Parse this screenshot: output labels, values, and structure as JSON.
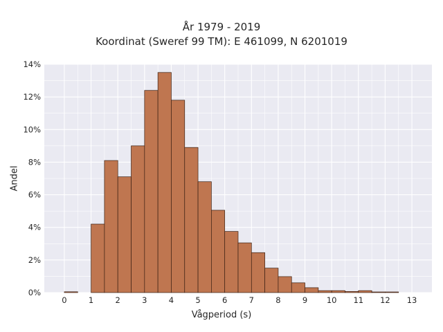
{
  "chart_data": {
    "type": "bar",
    "title": "År 1979 - 2019",
    "subtitle": "Koordinat (Sweref 99 TM): E 461099, N 6201019",
    "xlabel": "Vågperiod (s)",
    "ylabel": "Andel",
    "xlim": [
      -0.75,
      13.75
    ],
    "ylim": [
      0,
      14
    ],
    "xticks": [
      "0",
      "1",
      "2",
      "3",
      "4",
      "5",
      "6",
      "7",
      "8",
      "9",
      "10",
      "11",
      "12",
      "13"
    ],
    "yticks": [
      "0%",
      "2%",
      "4%",
      "6%",
      "8%",
      "10%",
      "12%",
      "14%"
    ],
    "bin_width": 0.5,
    "bins": [
      {
        "start": 0.0,
        "value": 0.05
      },
      {
        "start": 1.0,
        "value": 4.2
      },
      {
        "start": 1.5,
        "value": 8.1
      },
      {
        "start": 2.0,
        "value": 7.1
      },
      {
        "start": 2.5,
        "value": 9.0
      },
      {
        "start": 3.0,
        "value": 12.4
      },
      {
        "start": 3.5,
        "value": 13.5
      },
      {
        "start": 4.0,
        "value": 11.8
      },
      {
        "start": 4.5,
        "value": 8.9
      },
      {
        "start": 5.0,
        "value": 6.8
      },
      {
        "start": 5.5,
        "value": 5.05
      },
      {
        "start": 6.0,
        "value": 3.75
      },
      {
        "start": 6.5,
        "value": 3.05
      },
      {
        "start": 7.0,
        "value": 2.45
      },
      {
        "start": 7.5,
        "value": 1.5
      },
      {
        "start": 8.0,
        "value": 0.98
      },
      {
        "start": 8.5,
        "value": 0.6
      },
      {
        "start": 9.0,
        "value": 0.3
      },
      {
        "start": 9.5,
        "value": 0.12
      },
      {
        "start": 10.0,
        "value": 0.12
      },
      {
        "start": 10.5,
        "value": 0.07
      },
      {
        "start": 11.0,
        "value": 0.12
      },
      {
        "start": 11.5,
        "value": 0.04
      },
      {
        "start": 12.0,
        "value": 0.04
      }
    ],
    "grid": true,
    "colors": {
      "bar_fill": "#bf7650",
      "bar_edge": "#3a2014",
      "plot_bg": "#eaeaf2",
      "grid": "#ffffff"
    }
  }
}
